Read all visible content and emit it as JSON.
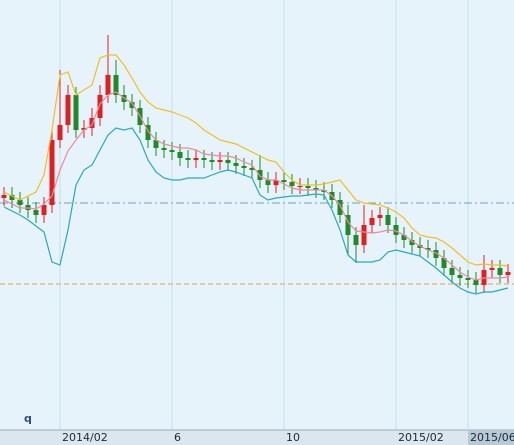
{
  "chart_data": {
    "type": "candlestick",
    "annotation": "q",
    "categories": [
      null,
      null,
      null,
      null,
      null,
      null,
      null,
      "2014/02",
      null,
      null,
      null,
      null,
      null,
      null,
      null,
      null,
      null,
      null,
      null,
      null,
      null,
      "6",
      null,
      null,
      null,
      null,
      null,
      null,
      null,
      null,
      null,
      null,
      null,
      null,
      null,
      "10",
      null,
      null,
      null,
      null,
      null,
      null,
      null,
      null,
      null,
      null,
      null,
      null,
      null,
      "2015/02",
      null,
      null,
      null,
      null,
      null,
      null,
      null,
      null,
      "2015/06",
      null,
      null,
      null,
      null,
      null
    ],
    "highlighted_category": 58,
    "open": [
      232,
      235,
      230,
      225,
      220,
      215,
      225,
      290,
      305,
      335,
      300,
      302,
      312,
      335,
      355,
      335,
      328,
      322,
      305,
      290,
      282,
      280,
      278,
      272,
      270,
      272,
      270,
      268,
      270,
      267,
      264,
      262,
      260,
      250,
      245,
      250,
      248,
      244,
      244,
      242,
      240,
      238,
      230,
      215,
      195,
      185,
      205,
      212,
      215,
      205,
      195,
      190,
      185,
      182,
      180,
      172,
      162,
      155,
      152,
      150,
      145,
      160,
      162,
      155
    ],
    "high": [
      243,
      243,
      238,
      233,
      228,
      233,
      300,
      360,
      345,
      343,
      310,
      322,
      345,
      395,
      370,
      345,
      336,
      330,
      313,
      298,
      290,
      288,
      286,
      280,
      280,
      280,
      278,
      278,
      278,
      275,
      272,
      270,
      275,
      258,
      258,
      258,
      256,
      252,
      252,
      250,
      248,
      246,
      238,
      225,
      203,
      225,
      220,
      223,
      223,
      213,
      203,
      198,
      193,
      190,
      188,
      180,
      170,
      163,
      160,
      158,
      175,
      170,
      170,
      166
    ],
    "low": [
      224,
      222,
      217,
      212,
      207,
      207,
      217,
      282,
      297,
      292,
      292,
      294,
      304,
      327,
      327,
      320,
      314,
      297,
      282,
      274,
      272,
      270,
      264,
      262,
      262,
      262,
      260,
      260,
      259,
      256,
      254,
      252,
      242,
      237,
      237,
      240,
      236,
      236,
      234,
      232,
      230,
      222,
      207,
      175,
      167,
      177,
      197,
      204,
      197,
      187,
      182,
      177,
      174,
      172,
      164,
      154,
      147,
      144,
      142,
      137,
      137,
      152,
      147,
      147
    ],
    "close": [
      235,
      230,
      225,
      220,
      215,
      225,
      290,
      305,
      335,
      300,
      302,
      312,
      335,
      355,
      335,
      328,
      322,
      305,
      290,
      282,
      280,
      278,
      272,
      270,
      272,
      270,
      268,
      270,
      267,
      264,
      262,
      260,
      250,
      245,
      250,
      248,
      244,
      244,
      242,
      240,
      238,
      230,
      215,
      195,
      185,
      205,
      212,
      215,
      205,
      195,
      190,
      185,
      182,
      180,
      172,
      162,
      155,
      152,
      150,
      145,
      160,
      162,
      155,
      158
    ],
    "up_color": "#e02020",
    "down_color": "#1f8a2a",
    "bands": [
      {
        "color": "#f0c020",
        "values": [
          238,
          234,
          230,
          234,
          238,
          255,
          300,
          355,
          358,
          335,
          340,
          345,
          372,
          375,
          375,
          365,
          352,
          338,
          328,
          322,
          320,
          318,
          315,
          312,
          307,
          300,
          295,
          290,
          288,
          286,
          282,
          278,
          274,
          270,
          268,
          258,
          250,
          245,
          245,
          245,
          246,
          248,
          250,
          240,
          230,
          227,
          226,
          225,
          222,
          218,
          212,
          202,
          195,
          193,
          192,
          188,
          182,
          175,
          168,
          165,
          166,
          165,
          165,
          164
        ]
      },
      {
        "color": "#f08a9a",
        "values": [
          230,
          226,
          222,
          222,
          221,
          226,
          234,
          260,
          279,
          290,
          300,
          305,
          326,
          335,
          338,
          332,
          327,
          314,
          299,
          290,
          286,
          284,
          282,
          282,
          280,
          276,
          275,
          274,
          274,
          272,
          268,
          265,
          254,
          250,
          250,
          246,
          242,
          240,
          240,
          240,
          240,
          234,
          225,
          208,
          199,
          198,
          197,
          198,
          200,
          199,
          195,
          189,
          184,
          180,
          177,
          172,
          165,
          158,
          153,
          150,
          152,
          152,
          152,
          153
        ]
      },
      {
        "color": "#28a8c8",
        "values": [
          223,
          219,
          215,
          210,
          204,
          198,
          168,
          165,
          200,
          245,
          260,
          265,
          280,
          295,
          302,
          300,
          302,
          290,
          270,
          258,
          252,
          250,
          250,
          252,
          252,
          252,
          255,
          258,
          260,
          258,
          255,
          252,
          235,
          230,
          232,
          233,
          234,
          234,
          235,
          236,
          235,
          220,
          200,
          175,
          168,
          168,
          168,
          170,
          178,
          180,
          178,
          176,
          174,
          168,
          162,
          155,
          148,
          142,
          138,
          136,
          138,
          138,
          140,
          142
        ]
      }
    ],
    "reference_lines": [
      {
        "value": 227,
        "color": "#6aa0c8",
        "dash": "8 3 2 3"
      },
      {
        "value": 146,
        "color": "#e8a040",
        "dash": "5 3"
      }
    ],
    "ylim": [
      0,
      430
    ]
  }
}
